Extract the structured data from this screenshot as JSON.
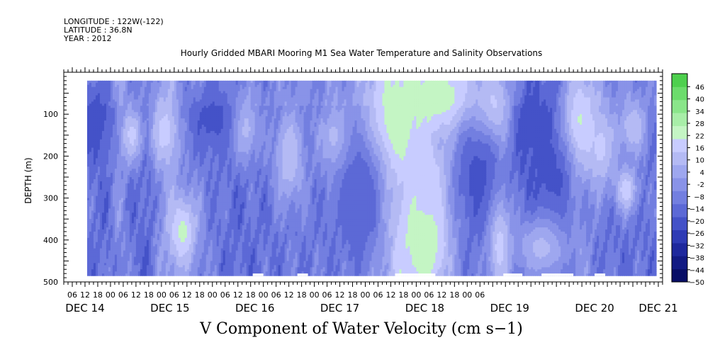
{
  "header": {
    "longitude": "LONGITUDE : 122W(-122)",
    "latitude": "LATITUDE : 36.8N",
    "year": "YEAR : 2012"
  },
  "colors": {
    "negative_ramp": [
      "#c8ccff",
      "#b4baf4",
      "#9ea7ef",
      "#8993e8",
      "#737fe0",
      "#5c69d6",
      "#4452c8",
      "#2e3bb5",
      "#1e289d",
      "#121a83",
      "#080e66"
    ],
    "positive_ramp": [
      "#c4f5c4",
      "#a8eea8",
      "#8ae68a",
      "#6cdc6c",
      "#4ed04e",
      "#36bf36",
      "#23a823",
      "#178c17",
      "#0e6e0e",
      "#084f08"
    ],
    "missing": "#ffffff"
  },
  "chart_data": {
    "type": "heatmap",
    "title": "Hourly Gridded MBARI Mooring M1 Sea Water Temperature and Salinity Observations",
    "xlabel": "V Component of Water Velocity (cm s−1)",
    "ylabel": "DEPTH (m)",
    "x_range_hours_from_dec14_00": [
      -10,
      272
    ],
    "data_x_range_hours": [
      1,
      269
    ],
    "ylim": [
      500,
      0
    ],
    "data_depth_range_m": [
      20,
      485
    ],
    "y_ticks": [
      {
        "v": 100,
        "label": "100"
      },
      {
        "v": 200,
        "label": "200"
      },
      {
        "v": 300,
        "label": "300"
      },
      {
        "v": 400,
        "label": "400"
      },
      {
        "v": 500,
        "label": "500"
      }
    ],
    "x_tick_labels": [
      "06",
      "12",
      "18",
      "00",
      "06",
      "12",
      "18",
      "00",
      "06",
      "12",
      "18",
      "00",
      "06",
      "12",
      "18",
      "00",
      "06",
      "12",
      "18",
      "00",
      "06",
      "12",
      "18",
      "00",
      "06",
      "12",
      "18",
      "00",
      "06",
      "12",
      "18",
      "00",
      "06"
    ],
    "date_labels": [
      {
        "text": "DEC 14",
        "hour": 0
      },
      {
        "text": "DEC 15",
        "hour": 40
      },
      {
        "text": "DEC 16",
        "hour": 80
      },
      {
        "text": "DEC 17",
        "hour": 120
      },
      {
        "text": "DEC 18",
        "hour": 160
      },
      {
        "text": "DEC 19",
        "hour": 200
      },
      {
        "text": "DEC 20",
        "hour": 240
      },
      {
        "text": "DEC 21",
        "hour": 270
      }
    ],
    "colorbar_levels": [
      -50,
      -44,
      -38,
      -32,
      -26,
      -20,
      -14,
      -8,
      -2,
      4,
      10,
      16,
      22,
      28,
      34,
      40,
      46
    ],
    "colorbar_labels": [
      "46",
      "40",
      "34",
      "28",
      "22",
      "16",
      "10",
      "4",
      "-2",
      "−8",
      "−14",
      "−20",
      "−26",
      "−32",
      "−38",
      "−44",
      "−50"
    ],
    "grid": false,
    "legend": "right",
    "time_profile": {
      "hours": [
        0,
        10,
        16,
        22,
        30,
        34,
        40,
        46,
        55,
        70,
        85,
        100,
        112,
        125,
        132,
        138,
        142,
        148,
        150,
        155,
        160,
        165,
        170,
        175,
        180,
        185,
        190,
        195,
        200,
        205,
        210,
        215,
        220,
        225,
        232,
        238,
        245,
        255,
        262,
        268
      ],
      "values": [
        -14,
        -16,
        -6,
        -14,
        -18,
        -8,
        -4,
        -12,
        -10,
        -16,
        -14,
        -12,
        -12,
        -10,
        -6,
        0,
        4,
        8,
        6,
        6,
        2,
        -2,
        -8,
        -12,
        -14,
        -14,
        -14,
        -10,
        -14,
        -18,
        -20,
        -22,
        -24,
        -20,
        -6,
        -10,
        -14,
        -14,
        -14,
        -14
      ]
    },
    "depth_features": [
      {
        "hour": 144,
        "depth": 130,
        "sigma_h": 10,
        "sigma_d": 90,
        "value": 22
      },
      {
        "hour": 168,
        "depth": 60,
        "sigma_h": 14,
        "sigma_d": 70,
        "value": 20
      },
      {
        "hour": 160,
        "depth": 400,
        "sigma_h": 9,
        "sigma_d": 100,
        "value": 22
      },
      {
        "hour": 163,
        "depth": 260,
        "sigma_h": 6,
        "sigma_d": 60,
        "value": 14
      },
      {
        "hour": 46,
        "depth": 380,
        "sigma_h": 5,
        "sigma_d": 70,
        "value": 18
      },
      {
        "hour": 38,
        "depth": 140,
        "sigma_h": 5,
        "sigma_d": 60,
        "value": 14
      },
      {
        "hour": 22,
        "depth": 150,
        "sigma_h": 4,
        "sigma_d": 50,
        "value": 12
      },
      {
        "hour": 195,
        "depth": 400,
        "sigma_h": 4,
        "sigma_d": 90,
        "value": 16
      },
      {
        "hour": 192,
        "depth": 90,
        "sigma_h": 6,
        "sigma_d": 60,
        "value": 14
      },
      {
        "hour": 233,
        "depth": 120,
        "sigma_h": 7,
        "sigma_d": 80,
        "value": 18
      },
      {
        "hour": 243,
        "depth": 180,
        "sigma_h": 5,
        "sigma_d": 70,
        "value": 12
      },
      {
        "hour": 255,
        "depth": 280,
        "sigma_h": 4,
        "sigma_d": 40,
        "value": 14
      },
      {
        "hour": 258,
        "depth": 130,
        "sigma_h": 5,
        "sigma_d": 50,
        "value": 10
      },
      {
        "hour": 75,
        "depth": 130,
        "sigma_h": 5,
        "sigma_d": 60,
        "value": 10
      },
      {
        "hour": 96,
        "depth": 200,
        "sigma_h": 5,
        "sigma_d": 80,
        "value": 10
      },
      {
        "hour": 118,
        "depth": 160,
        "sigma_h": 5,
        "sigma_d": 60,
        "value": 10
      },
      {
        "hour": 210,
        "depth": 120,
        "sigma_h": 5,
        "sigma_d": 60,
        "value": -24
      },
      {
        "hour": 220,
        "depth": 300,
        "sigma_h": 6,
        "sigma_d": 120,
        "value": -22
      },
      {
        "hour": 5,
        "depth": 110,
        "sigma_h": 5,
        "sigma_d": 60,
        "value": -24
      },
      {
        "hour": 130,
        "depth": 300,
        "sigma_h": 8,
        "sigma_d": 120,
        "value": -20
      },
      {
        "hour": 185,
        "depth": 250,
        "sigma_h": 7,
        "sigma_d": 90,
        "value": -22
      },
      {
        "hour": 60,
        "depth": 110,
        "sigma_h": 8,
        "sigma_d": 60,
        "value": -22
      },
      {
        "hour": 215,
        "depth": 420,
        "sigma_h": 10,
        "sigma_d": 60,
        "value": 6
      }
    ],
    "missing_bottom_segments_hours": [
      [
        79,
        84
      ],
      [
        100,
        105
      ],
      [
        146,
        165
      ],
      [
        197,
        206
      ],
      [
        215,
        230
      ],
      [
        240,
        245
      ]
    ]
  }
}
